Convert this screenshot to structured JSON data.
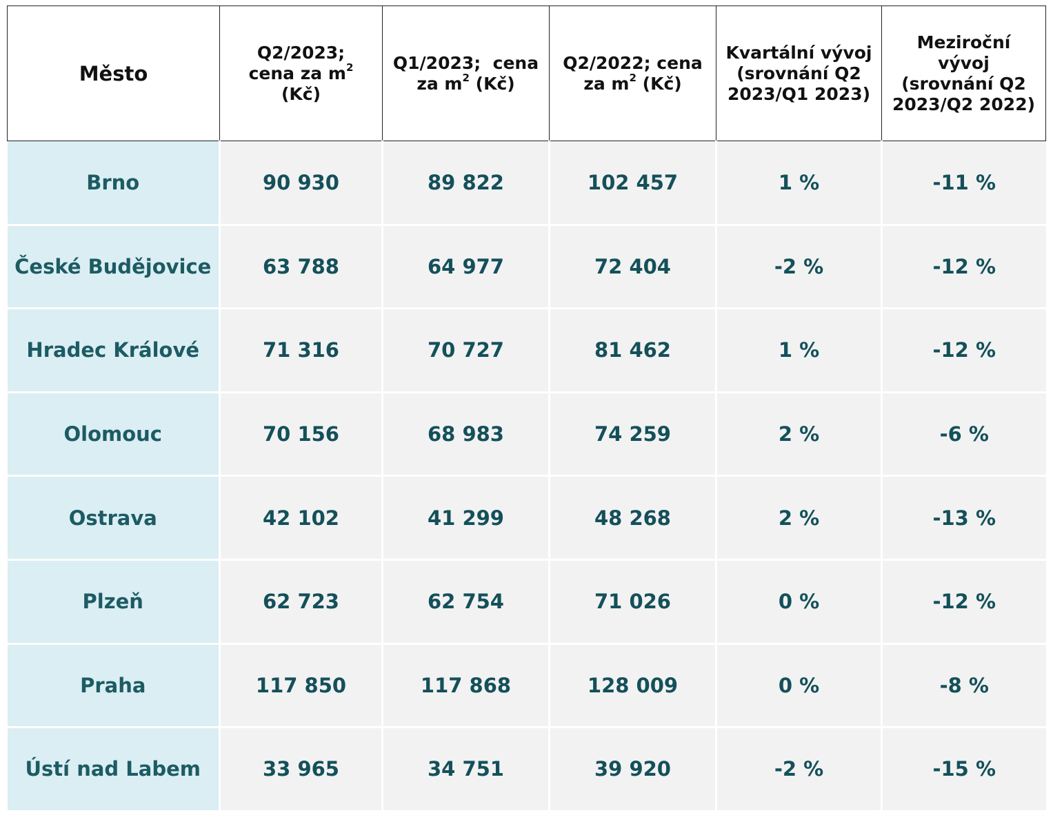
{
  "table": {
    "headers": {
      "city": "Město",
      "q2_2023_line1": "Q2/2023;",
      "q2_2023_line2": "cena za m",
      "q2_2023_sup": "2",
      "q2_2023_line3": "(Kč)",
      "q1_2023_line1": "Q1/2023;  cena",
      "q1_2023_line2": "za m",
      "q1_2023_sup": "2",
      "q1_2023_line3": " (Kč)",
      "q2_2022_line1": "Q2/2022; cena",
      "q2_2022_line2": "za m",
      "q2_2022_sup": "2",
      "q2_2022_line3": " (Kč)",
      "quarterly_line1": "Kvartální vývoj",
      "quarterly_line2": "(srovnání Q2",
      "quarterly_line3": "2023/Q1 2023)",
      "yoy_line1": "Meziroční",
      "yoy_line2": "vývoj",
      "yoy_line3": "(srovnání Q2",
      "yoy_line4": "2023/Q2 2022)"
    },
    "rows": [
      {
        "city": "Brno",
        "q2_2023": "90 930",
        "q1_2023": "89 822",
        "q2_2022": "102 457",
        "quarterly": "1 %",
        "yoy": "-11 %"
      },
      {
        "city": "České Budějovice",
        "q2_2023": "63 788",
        "q1_2023": "64 977",
        "q2_2022": "72 404",
        "quarterly": "-2 %",
        "yoy": "-12 %"
      },
      {
        "city": "Hradec Králové",
        "q2_2023": "71 316",
        "q1_2023": "70 727",
        "q2_2022": "81 462",
        "quarterly": "1 %",
        "yoy": "-12 %"
      },
      {
        "city": "Olomouc",
        "q2_2023": "70 156",
        "q1_2023": "68 983",
        "q2_2022": "74 259",
        "quarterly": "2 %",
        "yoy": "-6 %"
      },
      {
        "city": "Ostrava",
        "q2_2023": "42 102",
        "q1_2023": "41 299",
        "q2_2022": "48 268",
        "quarterly": "2 %",
        "yoy": "-13 %"
      },
      {
        "city": "Plzeň",
        "q2_2023": "62 723",
        "q1_2023": "62 754",
        "q2_2022": "71 026",
        "quarterly": "0 %",
        "yoy": "-12 %"
      },
      {
        "city": "Praha",
        "q2_2023": "117 850",
        "q1_2023": "117 868",
        "q2_2022": "128 009",
        "quarterly": "0 %",
        "yoy": "-8 %"
      },
      {
        "city": "Ústí nad Labem",
        "q2_2023": "33 965",
        "q1_2023": "34 751",
        "q2_2022": "39 920",
        "quarterly": "-2 %",
        "yoy": "-15 %"
      }
    ],
    "colors": {
      "city_cell_bg": "#daeef3",
      "value_cell_bg": "#f2f2f2",
      "text": "#14505a"
    }
  }
}
